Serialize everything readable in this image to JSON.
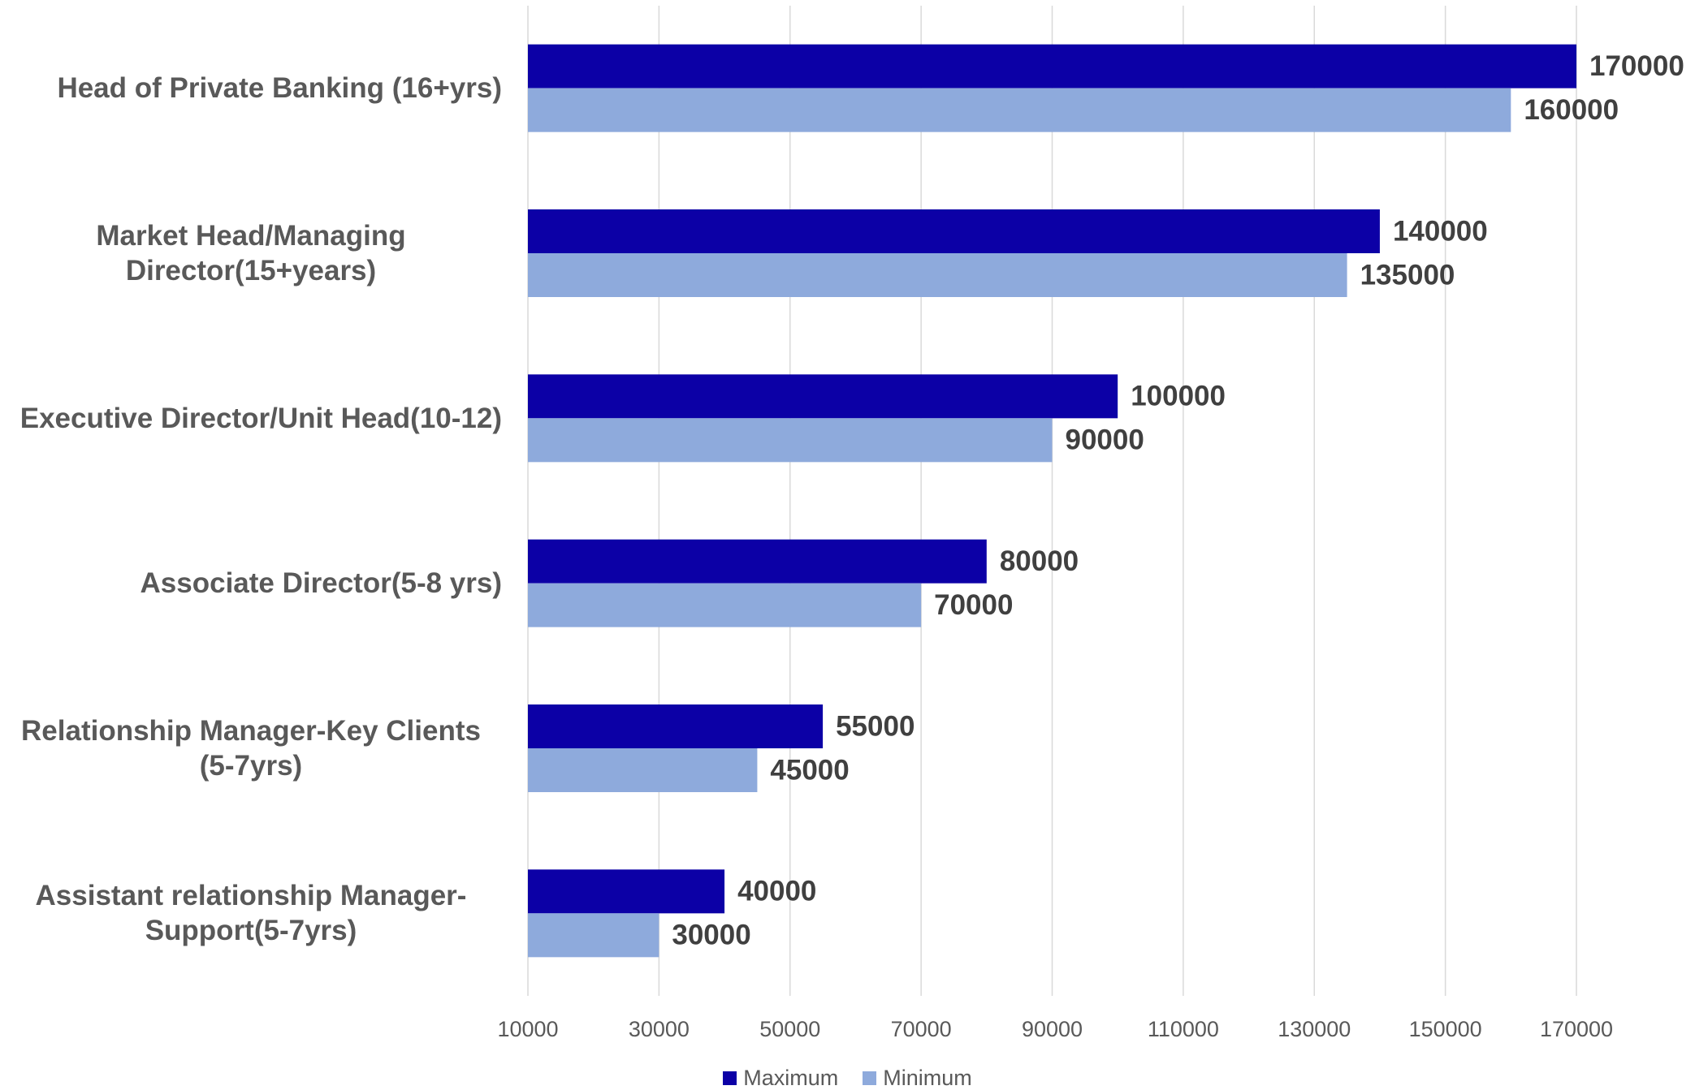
{
  "chart_data": {
    "type": "barh",
    "categories": [
      "Head of Private Banking (16+yrs)",
      "Market Head/Managing Director(15+years)",
      "Executive Director/Unit Head(10-12)",
      "Associate Director(5-8 yrs)",
      "Relationship Manager-Key Clients (5-7yrs)",
      "Assistant relationship Manager-Support(5-7yrs)"
    ],
    "series": [
      {
        "name": "Maximum",
        "color": "#0c00a6",
        "values": [
          170000,
          140000,
          100000,
          80000,
          55000,
          40000
        ]
      },
      {
        "name": "Minimum",
        "color": "#8eaadc",
        "values": [
          160000,
          135000,
          90000,
          70000,
          45000,
          30000
        ]
      }
    ],
    "xlim": [
      10000,
      170000
    ],
    "xticks": [
      10000,
      30000,
      50000,
      70000,
      90000,
      110000,
      130000,
      150000,
      170000
    ],
    "grid": true,
    "legend": "bottom"
  }
}
